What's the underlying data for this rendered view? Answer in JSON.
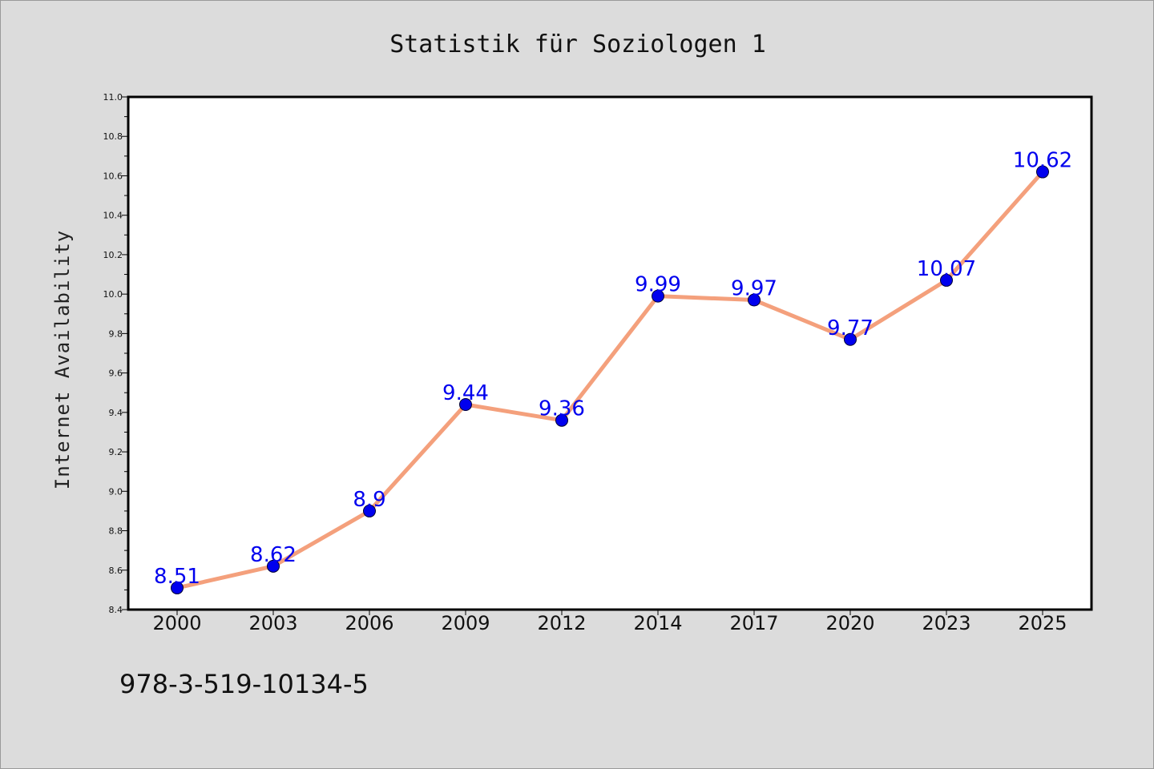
{
  "figure": {
    "background": "#dcdcdc",
    "footer_text": "978-3-519-10134-5"
  },
  "chart_data": {
    "type": "line",
    "title": "Statistik für Soziologen 1",
    "xlabel": "",
    "ylabel": "Internet Availability",
    "categories": [
      "2000",
      "2003",
      "2006",
      "2009",
      "2012",
      "2014",
      "2017",
      "2020",
      "2023",
      "2025"
    ],
    "series": [
      {
        "values": [
          8.51,
          8.62,
          8.9,
          9.44,
          9.36,
          9.99,
          9.97,
          9.77,
          10.07,
          10.62
        ],
        "line_color": "#f4a07c",
        "marker_color": "#0000ee",
        "label_color": "#0000ee"
      }
    ],
    "ylim": [
      8.4,
      11.0
    ],
    "yticks": [
      "8.4",
      "8.6",
      "8.8",
      "9.0",
      "9.2",
      "9.4",
      "9.6",
      "9.8",
      "10.0",
      "10.2",
      "10.4",
      "10.6",
      "10.8",
      "11.0"
    ],
    "y_minor_step": 0.1,
    "grid": false,
    "legend": "none",
    "data_labels": true,
    "plot_background": "#ffffff"
  }
}
